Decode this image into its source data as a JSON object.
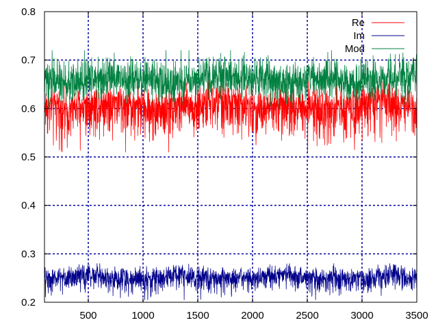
{
  "chart_data": {
    "type": "line",
    "title": "",
    "xlabel": "",
    "ylabel": "",
    "xlim": [
      100,
      3500
    ],
    "ylim": [
      0.2,
      0.8
    ],
    "x_ticks": [
      500,
      1000,
      1500,
      2000,
      2500,
      3000,
      3500
    ],
    "y_ticks": [
      0.2,
      0.3,
      0.4,
      0.5,
      0.6,
      0.7,
      0.8
    ],
    "grid": true,
    "legend_position": "top-right",
    "series": [
      {
        "name": "Re",
        "color": "#ff0000",
        "x_start": 100,
        "x_end": 3500,
        "mean": 0.61,
        "noise_range": [
          0.51,
          0.66
        ],
        "values": [
          0.61,
          0.6,
          0.61,
          0.62,
          0.61,
          0.6,
          0.61,
          0.61,
          0.62,
          0.61,
          0.6,
          0.61,
          0.61,
          0.6,
          0.61,
          0.62,
          0.61,
          0.61
        ]
      },
      {
        "name": "Im",
        "color": "#00008b",
        "x_start": 100,
        "x_end": 3500,
        "mean": 0.25,
        "noise_range": [
          0.205,
          0.28
        ],
        "values": [
          0.25,
          0.25,
          0.26,
          0.25,
          0.25,
          0.25,
          0.26,
          0.25,
          0.25,
          0.25,
          0.25,
          0.26,
          0.25,
          0.25,
          0.25,
          0.25,
          0.26,
          0.25
        ]
      },
      {
        "name": "Mod",
        "color": "#008040",
        "x_start": 100,
        "x_end": 3500,
        "mean": 0.66,
        "noise_range": [
          0.6,
          0.72
        ],
        "values": [
          0.66,
          0.65,
          0.66,
          0.67,
          0.66,
          0.66,
          0.65,
          0.66,
          0.67,
          0.66,
          0.66,
          0.65,
          0.66,
          0.66,
          0.65,
          0.66,
          0.66,
          0.67
        ]
      }
    ]
  },
  "colors": {
    "grid": "#0000a0",
    "axis": "#000000",
    "background": "#ffffff"
  }
}
